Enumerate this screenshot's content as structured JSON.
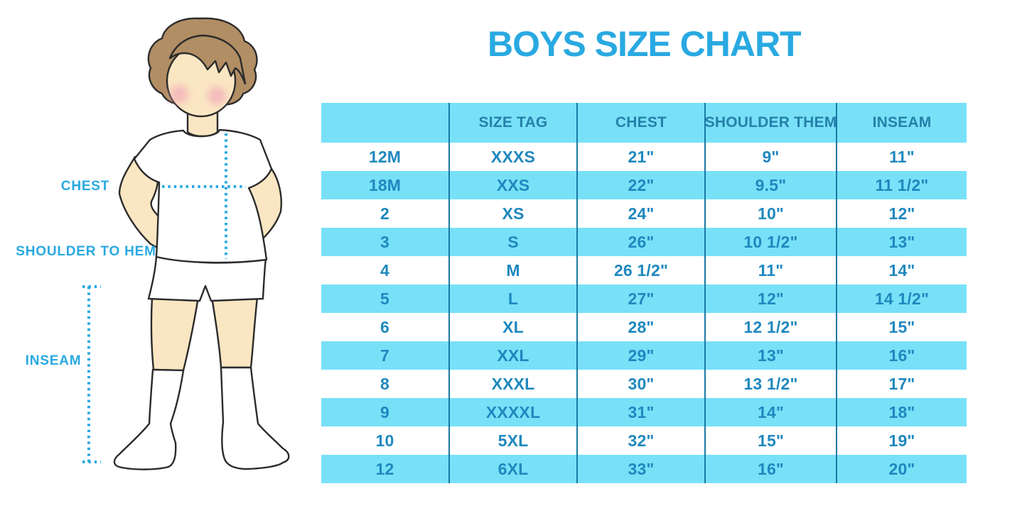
{
  "title": "BOYS SIZE CHART",
  "figure": {
    "labels": {
      "chest": "CHEST",
      "shoulder_to_hem": "SHOULDER TO HEM",
      "inseam": "INSEAM"
    }
  },
  "chart_data": {
    "type": "table",
    "title": "BOYS SIZE CHART",
    "columns": [
      "",
      "SIZE TAG",
      "CHEST",
      "SHOULDER THEM",
      "INSEAM"
    ],
    "rows": [
      [
        "12M",
        "XXXS",
        "21\"",
        "9\"",
        "11\""
      ],
      [
        "18M",
        "XXS",
        "22\"",
        "9.5\"",
        "11 1/2\""
      ],
      [
        "2",
        "XS",
        "24\"",
        "10\"",
        "12\""
      ],
      [
        "3",
        "S",
        "26\"",
        "10 1/2\"",
        "13\""
      ],
      [
        "4",
        "M",
        "26 1/2\"",
        "11\"",
        "14\""
      ],
      [
        "5",
        "L",
        "27\"",
        "12\"",
        "14 1/2\""
      ],
      [
        "6",
        "XL",
        "28\"",
        "12 1/2\"",
        "15\""
      ],
      [
        "7",
        "XXL",
        "29\"",
        "13\"",
        "16\""
      ],
      [
        "8",
        "XXXL",
        "30\"",
        "13 1/2\"",
        "17\""
      ],
      [
        "9",
        "XXXXL",
        "31\"",
        "14\"",
        "18\""
      ],
      [
        "10",
        "5XL",
        "32\"",
        "15\"",
        "19\""
      ],
      [
        "12",
        "6XL",
        "33\"",
        "16\"",
        "20\""
      ]
    ],
    "layout": {
      "header_fill": "light blue band",
      "row_striping": "rows 18M, 3, 5, 7, 9, 12 on light blue bands; others white",
      "grid": "vertical column dividers only, no outer border",
      "legend_position": "none"
    }
  },
  "colors": {
    "accent_blue": "#29A9E1",
    "band_blue": "#78E1F8",
    "header_text": "#2580A9",
    "cell_text": "#1F88BE",
    "divider": "#1A78A3",
    "outline": "#2B2B2B",
    "skin": "#FAE6C2",
    "hair": "#B18E64",
    "cheek": "#F2A6B8"
  }
}
